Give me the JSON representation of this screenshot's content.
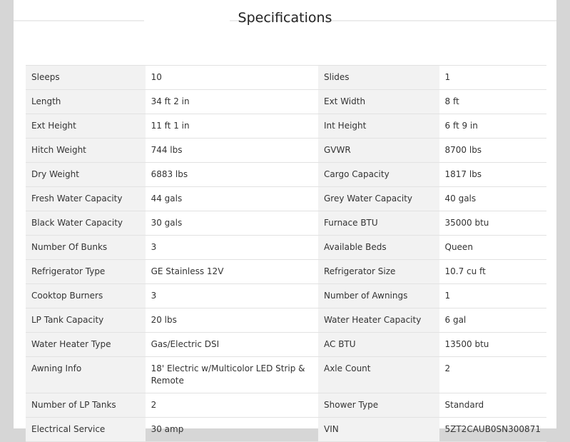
{
  "title": "Specifications",
  "rows": [
    [
      {
        "k": "Sleeps",
        "v": "10"
      },
      {
        "k": "Slides",
        "v": "1"
      }
    ],
    [
      {
        "k": "Length",
        "v": "34 ft 2 in"
      },
      {
        "k": "Ext Width",
        "v": "8 ft"
      }
    ],
    [
      {
        "k": "Ext Height",
        "v": "11 ft 1 in"
      },
      {
        "k": "Int Height",
        "v": "6 ft 9 in"
      }
    ],
    [
      {
        "k": "Hitch Weight",
        "v": "744 lbs"
      },
      {
        "k": "GVWR",
        "v": "8700 lbs"
      }
    ],
    [
      {
        "k": "Dry Weight",
        "v": "6883 lbs"
      },
      {
        "k": "Cargo Capacity",
        "v": "1817 lbs"
      }
    ],
    [
      {
        "k": "Fresh Water Capacity",
        "v": "44 gals"
      },
      {
        "k": "Grey Water Capacity",
        "v": "40 gals"
      }
    ],
    [
      {
        "k": "Black Water Capacity",
        "v": "30 gals"
      },
      {
        "k": "Furnace BTU",
        "v": "35000 btu"
      }
    ],
    [
      {
        "k": "Number Of Bunks",
        "v": "3"
      },
      {
        "k": "Available Beds",
        "v": "Queen"
      }
    ],
    [
      {
        "k": "Refrigerator Type",
        "v": "GE Stainless 12V"
      },
      {
        "k": "Refrigerator Size",
        "v": "10.7 cu ft"
      }
    ],
    [
      {
        "k": "Cooktop Burners",
        "v": "3"
      },
      {
        "k": "Number of Awnings",
        "v": "1"
      }
    ],
    [
      {
        "k": "LP Tank Capacity",
        "v": "20 lbs"
      },
      {
        "k": "Water Heater Capacity",
        "v": "6 gal"
      }
    ],
    [
      {
        "k": "Water Heater Type",
        "v": "Gas/Electric DSI"
      },
      {
        "k": "AC BTU",
        "v": "13500 btu"
      }
    ],
    [
      {
        "k": "Awning Info",
        "v": "18' Electric w/Multicolor LED Strip & Remote"
      },
      {
        "k": "Axle Count",
        "v": "2"
      }
    ],
    [
      {
        "k": "Number of LP Tanks",
        "v": "2"
      },
      {
        "k": "Shower Type",
        "v": "Standard"
      }
    ],
    [
      {
        "k": "Electrical Service",
        "v": "30 amp"
      },
      {
        "k": "VIN",
        "v": "5ZT2CAUB0SN300871"
      }
    ]
  ]
}
